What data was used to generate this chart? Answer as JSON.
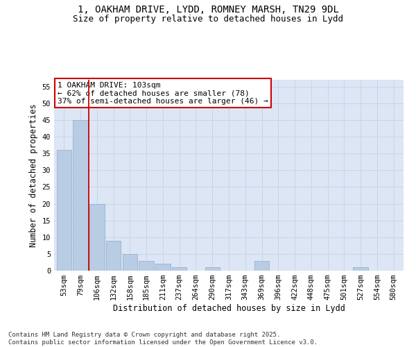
{
  "title_line1": "1, OAKHAM DRIVE, LYDD, ROMNEY MARSH, TN29 9DL",
  "title_line2": "Size of property relative to detached houses in Lydd",
  "xlabel": "Distribution of detached houses by size in Lydd",
  "ylabel": "Number of detached properties",
  "categories": [
    "53sqm",
    "79sqm",
    "106sqm",
    "132sqm",
    "158sqm",
    "185sqm",
    "211sqm",
    "237sqm",
    "264sqm",
    "290sqm",
    "317sqm",
    "343sqm",
    "369sqm",
    "396sqm",
    "422sqm",
    "448sqm",
    "475sqm",
    "501sqm",
    "527sqm",
    "554sqm",
    "580sqm"
  ],
  "values": [
    36,
    45,
    20,
    9,
    5,
    3,
    2,
    1,
    0,
    1,
    0,
    0,
    3,
    0,
    0,
    0,
    0,
    0,
    1,
    0,
    0
  ],
  "bar_color": "#b8cce4",
  "bar_edge_color": "#8eaacc",
  "vline_x": 1.5,
  "vline_color": "#cc0000",
  "annotation_line1": "1 OAKHAM DRIVE: 103sqm",
  "annotation_line2": "← 62% of detached houses are smaller (78)",
  "annotation_line3": "37% of semi-detached houses are larger (46) →",
  "annotation_box_edge": "#cc0000",
  "ylim": [
    0,
    57
  ],
  "yticks": [
    0,
    5,
    10,
    15,
    20,
    25,
    30,
    35,
    40,
    45,
    50,
    55
  ],
  "grid_color": "#c8d4e8",
  "background_color": "#dce6f5",
  "footer_text": "Contains HM Land Registry data © Crown copyright and database right 2025.\nContains public sector information licensed under the Open Government Licence v3.0.",
  "title_fontsize": 10,
  "subtitle_fontsize": 9,
  "axis_label_fontsize": 8.5,
  "tick_fontsize": 7.5,
  "annotation_fontsize": 8,
  "footer_fontsize": 6.5
}
